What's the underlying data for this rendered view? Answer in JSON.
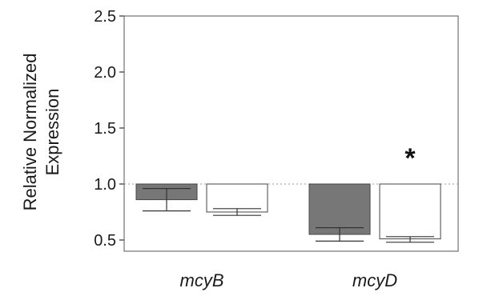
{
  "chart_data": {
    "type": "bar",
    "title": "",
    "xlabel": "",
    "ylabel_lines": [
      "Relative Normalized",
      "Expression"
    ],
    "ylim": [
      0.4,
      2.5
    ],
    "yticks": [
      "0.5",
      "1.0",
      "1.5",
      "2.0",
      "2.5"
    ],
    "baseline": 1.0,
    "baseline_style": "dotted",
    "categories": [
      "mcyB",
      "mcyD"
    ],
    "series": [
      {
        "color": "#777777",
        "values": [
          0.86,
          0.55
        ],
        "error_low": [
          0.76,
          0.49
        ],
        "error_high": [
          0.96,
          0.61
        ]
      },
      {
        "color": "#ffffff",
        "values": [
          0.75,
          0.51
        ],
        "error_low": [
          0.72,
          0.48
        ],
        "error_high": [
          0.78,
          0.53
        ]
      }
    ],
    "annotations": [
      {
        "text": "*",
        "category": "mcyD",
        "series": 1,
        "y": 1.25
      }
    ],
    "grid": false,
    "legend": "none"
  }
}
